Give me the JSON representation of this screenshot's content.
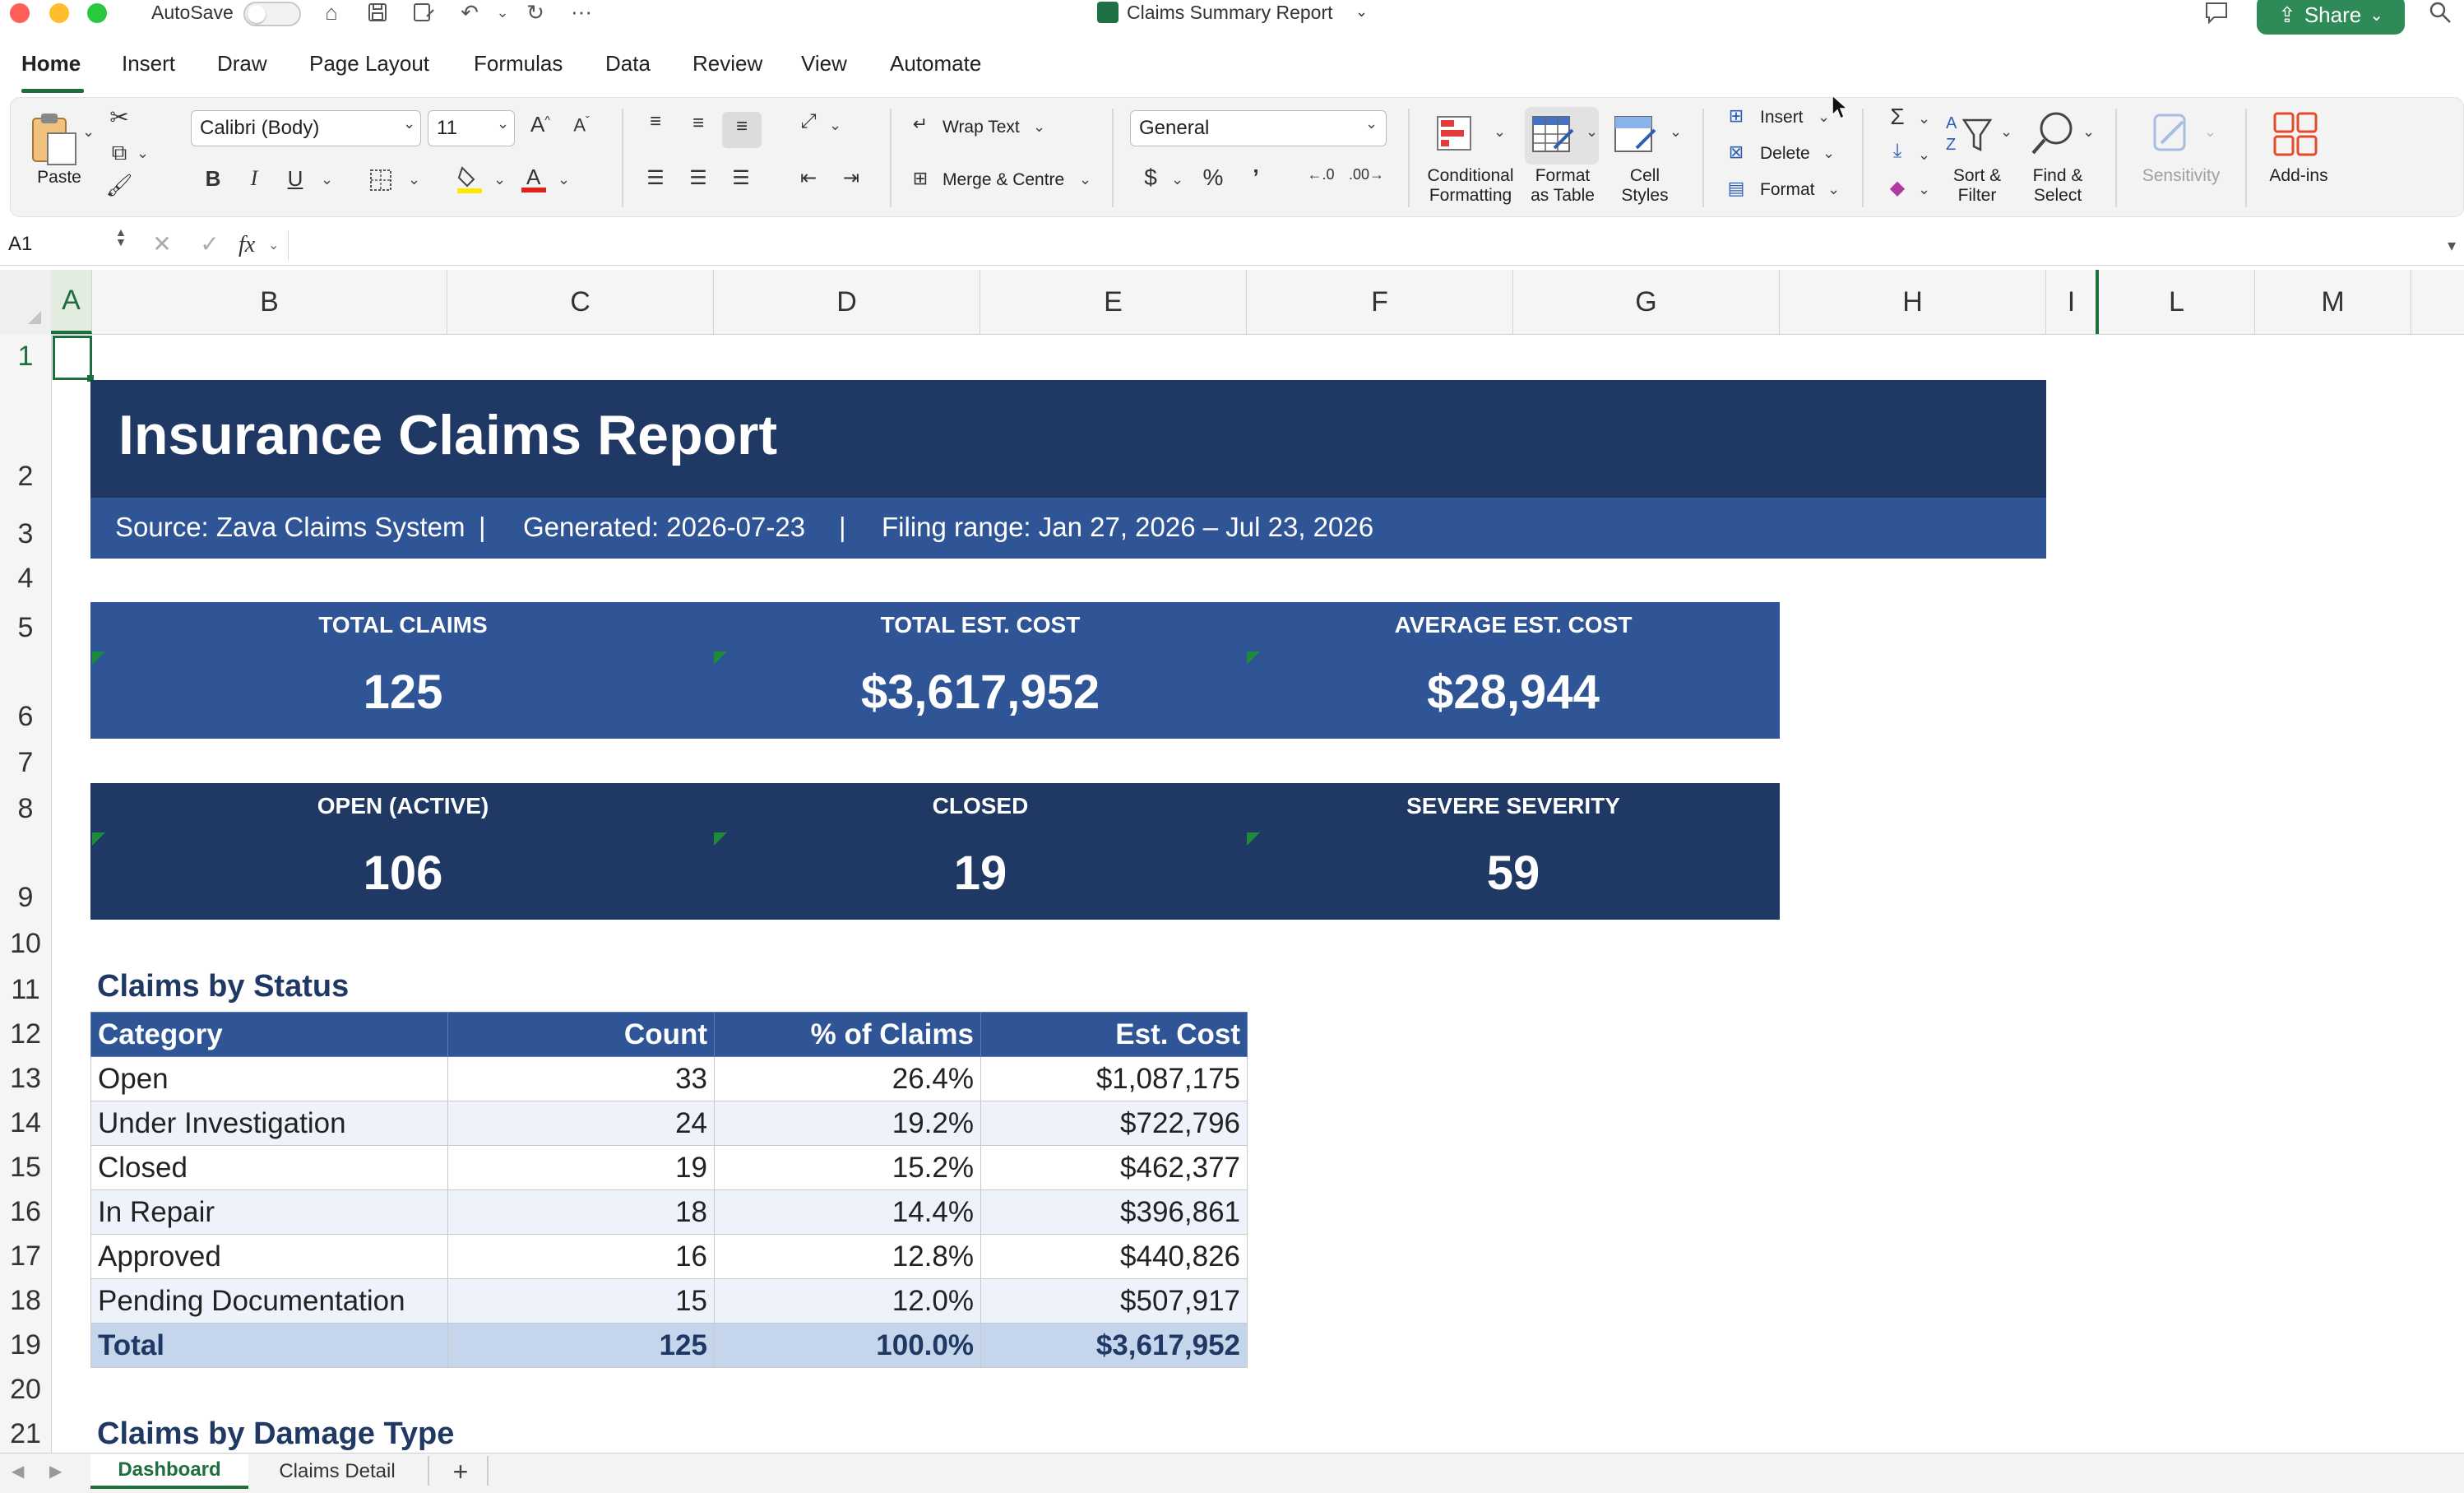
{
  "titlebar": {
    "autosave_label": "AutoSave",
    "doc_title": "Claims Summary Report",
    "share_label": "Share",
    "colors": {
      "close": "#fe5f57",
      "minimize": "#febc2e",
      "zoom": "#28c840",
      "share": "#2e8b57"
    }
  },
  "ribbon_tabs": [
    "Home",
    "Insert",
    "Draw",
    "Page Layout",
    "Formulas",
    "Data",
    "Review",
    "View",
    "Automate"
  ],
  "ribbon": {
    "paste_label": "Paste",
    "font_name": "Calibri (Body)",
    "font_size": "11",
    "bold": "B",
    "italic": "I",
    "underline": "U",
    "wrap_text": "Wrap Text",
    "merge_centre": "Merge & Centre",
    "number_format": "General",
    "currency": "$",
    "percent": "%",
    "comma": "’",
    "conditional_formatting": [
      "Conditional",
      "Formatting"
    ],
    "format_as_table": [
      "Format",
      "as Table"
    ],
    "cell_styles": [
      "Cell",
      "Styles"
    ],
    "insert": "Insert",
    "delete": "Delete",
    "format": "Format",
    "sort_filter": [
      "Sort &",
      "Filter"
    ],
    "find_select": [
      "Find &",
      "Select"
    ],
    "sensitivity": "Sensitivity",
    "add_ins": "Add-ins"
  },
  "formula_bar": {
    "name_box": "A1",
    "fx_label": "fx",
    "formula": ""
  },
  "columns": [
    "A",
    "B",
    "C",
    "D",
    "E",
    "F",
    "G",
    "H",
    "I",
    "L",
    "M"
  ],
  "rows": [
    "1",
    "2",
    "3",
    "4",
    "5",
    "6",
    "7",
    "8",
    "9",
    "10",
    "11",
    "12",
    "13",
    "14",
    "15",
    "16",
    "17",
    "18",
    "19",
    "20",
    "21"
  ],
  "report": {
    "title": "Insurance Claims Report",
    "source": "Source: Zava Claims System",
    "separator": "|",
    "generated": "Generated: 2026-07-23",
    "filing_range": "Filing range: Jan 27, 2026 – Jul 23, 2026",
    "kpis_row1": [
      {
        "label": "TOTAL CLAIMS",
        "value": "125"
      },
      {
        "label": "TOTAL EST. COST",
        "value": "$3,617,952"
      },
      {
        "label": "AVERAGE EST. COST",
        "value": "$28,944"
      }
    ],
    "kpis_row2": [
      {
        "label": "OPEN (ACTIVE)",
        "value": "106"
      },
      {
        "label": "CLOSED",
        "value": "19"
      },
      {
        "label": "SEVERE SEVERITY",
        "value": "59"
      }
    ],
    "status_section_title": "Claims by Status",
    "status_table": {
      "headers": [
        "Category",
        "Count",
        "% of Claims",
        "Est. Cost"
      ],
      "rows": [
        [
          "Open",
          "33",
          "26.4%",
          "$1,087,175"
        ],
        [
          "Under Investigation",
          "24",
          "19.2%",
          "$722,796"
        ],
        [
          "Closed",
          "19",
          "15.2%",
          "$462,377"
        ],
        [
          "In Repair",
          "18",
          "14.4%",
          "$396,861"
        ],
        [
          "Approved",
          "16",
          "12.8%",
          "$440,826"
        ],
        [
          "Pending Documentation",
          "15",
          "12.0%",
          "$507,917"
        ]
      ],
      "total": [
        "Total",
        "125",
        "100.0%",
        "$3,617,952"
      ]
    },
    "damage_section_title": "Claims by Damage Type",
    "colors": {
      "banner": "#1f3864",
      "subbar": "#2f5597",
      "kpi1": "#2f5597",
      "kpi2": "#1f3864"
    }
  },
  "sheet_tabs": [
    "Dashboard",
    "Claims Detail"
  ],
  "add_sheet": "+"
}
